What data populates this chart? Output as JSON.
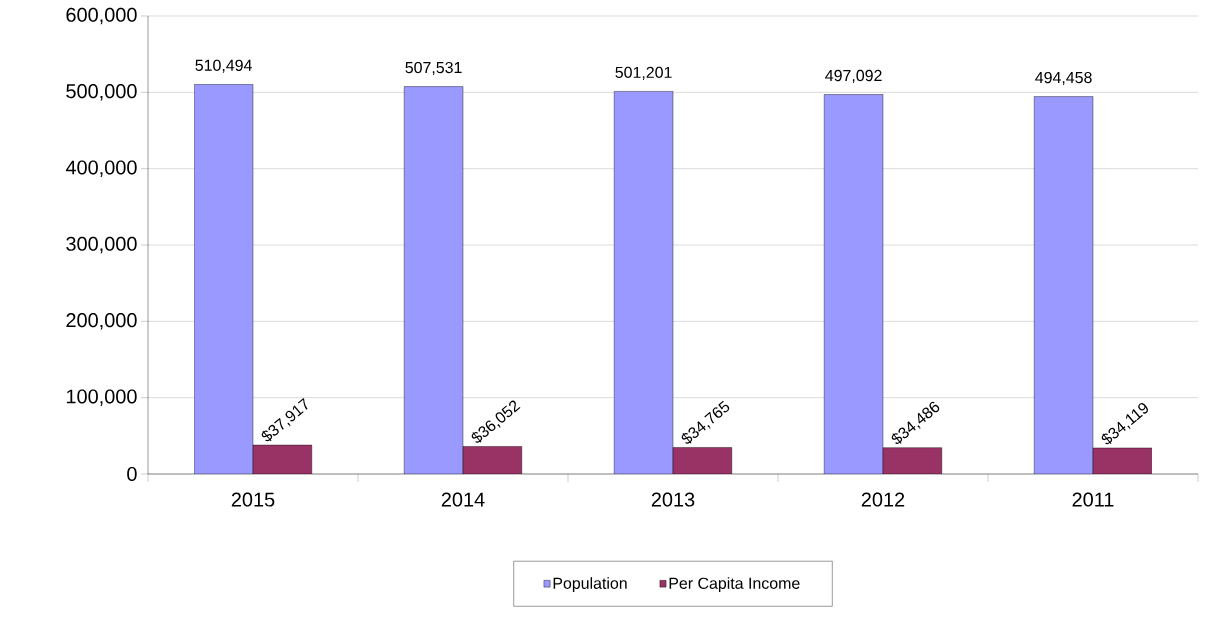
{
  "chart_data": {
    "type": "bar",
    "categories": [
      "2015",
      "2014",
      "2013",
      "2012",
      "2011"
    ],
    "series": [
      {
        "name": "Population",
        "color": "#9999ff",
        "values": [
          510494,
          507531,
          501201,
          497092,
          494458
        ],
        "value_labels": [
          "510,494",
          "507,531",
          "501,201",
          "497,092",
          "494,458"
        ]
      },
      {
        "name": "Per Capita Income",
        "color": "#993366",
        "values": [
          37917,
          36052,
          34765,
          34486,
          34119
        ],
        "value_labels": [
          "$37,917",
          "$36,052",
          "$34,765",
          "$34,486",
          "$34,119"
        ]
      }
    ],
    "ylim": [
      0,
      600000
    ],
    "yticks": [
      {
        "value": 0,
        "label": "0"
      },
      {
        "value": 100000,
        "label": "100,000"
      },
      {
        "value": 200000,
        "label": "200,000"
      },
      {
        "value": 300000,
        "label": "300,000"
      },
      {
        "value": 400000,
        "label": "400,000"
      },
      {
        "value": 500000,
        "label": "500,000"
      },
      {
        "value": 600000,
        "label": "600,000"
      }
    ],
    "grid": "y",
    "legend": "bottom"
  }
}
